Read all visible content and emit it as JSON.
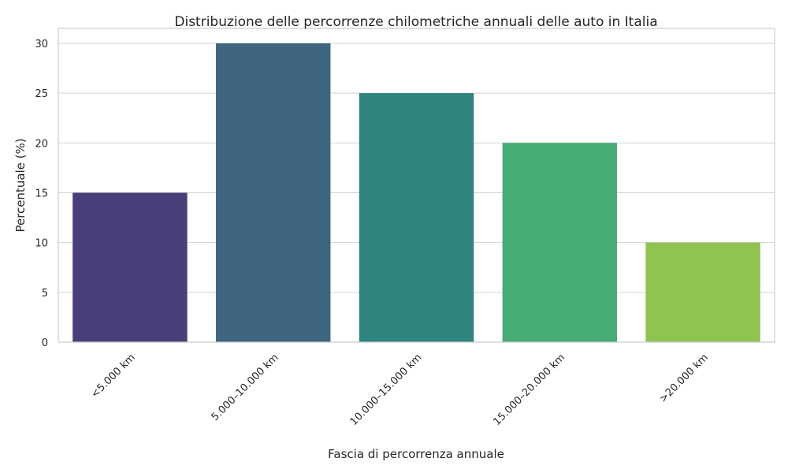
{
  "chart_data": {
    "type": "bar",
    "title": "Distribuzione delle percorrenze chilometriche annuali delle auto in Italia",
    "xlabel": "Fascia di percorrenza annuale",
    "ylabel": "Percentuale (%)",
    "categories": [
      "<5.000 km",
      "5.000–10.000 km",
      "10.000–15.000 km",
      "15.000–20.000 km",
      ">20.000 km"
    ],
    "values": [
      15,
      30,
      25,
      20,
      10
    ],
    "colors": [
      "#4a3f7a",
      "#3f6680",
      "#2e857e",
      "#47ab75",
      "#8fc453"
    ],
    "ylim": [
      0,
      31.5
    ],
    "yticks": [
      0,
      5,
      10,
      15,
      20,
      25,
      30
    ],
    "grid": true,
    "legend": "none"
  }
}
